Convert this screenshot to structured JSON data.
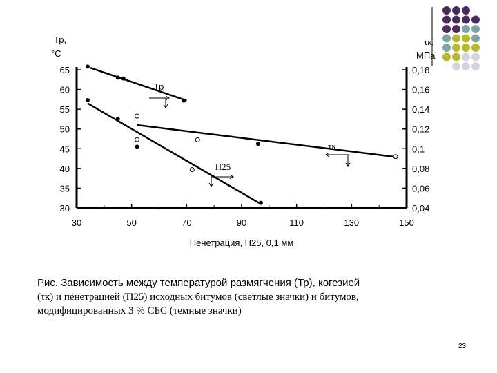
{
  "chart_data": {
    "type": "scatter",
    "xlabel": "Пенетрация, П25, 0,1 мм",
    "ylabel_left": "Тр, °С",
    "ylabel_right": "τк, МПа",
    "xlim": [
      30,
      150
    ],
    "ylim_left": [
      30,
      65
    ],
    "ylim_right": [
      0.04,
      0.18
    ],
    "x_ticks": [
      30,
      50,
      70,
      90,
      110,
      130,
      150
    ],
    "y_ticks_left": [
      30,
      35,
      40,
      45,
      50,
      55,
      60,
      65
    ],
    "y_ticks_right": [
      "0,04",
      "0,06",
      "0,08",
      "0,1",
      "0,12",
      "0,14",
      "0,16",
      "0,18"
    ],
    "grid": false,
    "series": [
      {
        "name": "Тр",
        "axis": "left",
        "points_filled": [
          [
            34,
            65.8
          ],
          [
            45,
            63
          ],
          [
            47,
            62.8
          ],
          [
            69,
            57.2
          ]
        ],
        "points_open": [],
        "trend": [
          [
            35,
            65.5
          ],
          [
            70,
            57.2
          ]
        ]
      },
      {
        "name": "τк",
        "axis": "right",
        "points_filled": [
          [
            96,
            0.105
          ]
        ],
        "points_open": [
          [
            52,
            0.133
          ],
          [
            74,
            0.109
          ],
          [
            146,
            0.092
          ]
        ],
        "trend": [
          [
            52,
            0.124
          ],
          [
            145,
            0.092
          ]
        ]
      },
      {
        "name": "П25",
        "axis": "left",
        "points_filled": [
          [
            34,
            57.3
          ],
          [
            45,
            52.5
          ],
          [
            52,
            45.5
          ],
          [
            97,
            31.3
          ]
        ],
        "points_open": [
          [
            52,
            47.3
          ],
          [
            72,
            39.7
          ]
        ],
        "trend": [
          [
            34,
            56.5
          ],
          [
            97,
            31
          ]
        ]
      }
    ]
  },
  "caption": {
    "line1": "Рис. Зависимость между температурой размягчения (Тр), когезией",
    "line2": "(τк) и пенетрацией (П25) исходных битумов (светлые значки) и битумов,",
    "line3": "модифицированных 3 % СБС (темные значки)"
  },
  "page_number": "23",
  "colors": {
    "purple": "#4b2c5e",
    "teal": "#7fa4a4",
    "olive": "#b8b82c",
    "lightgray": "#d4d4dc"
  }
}
